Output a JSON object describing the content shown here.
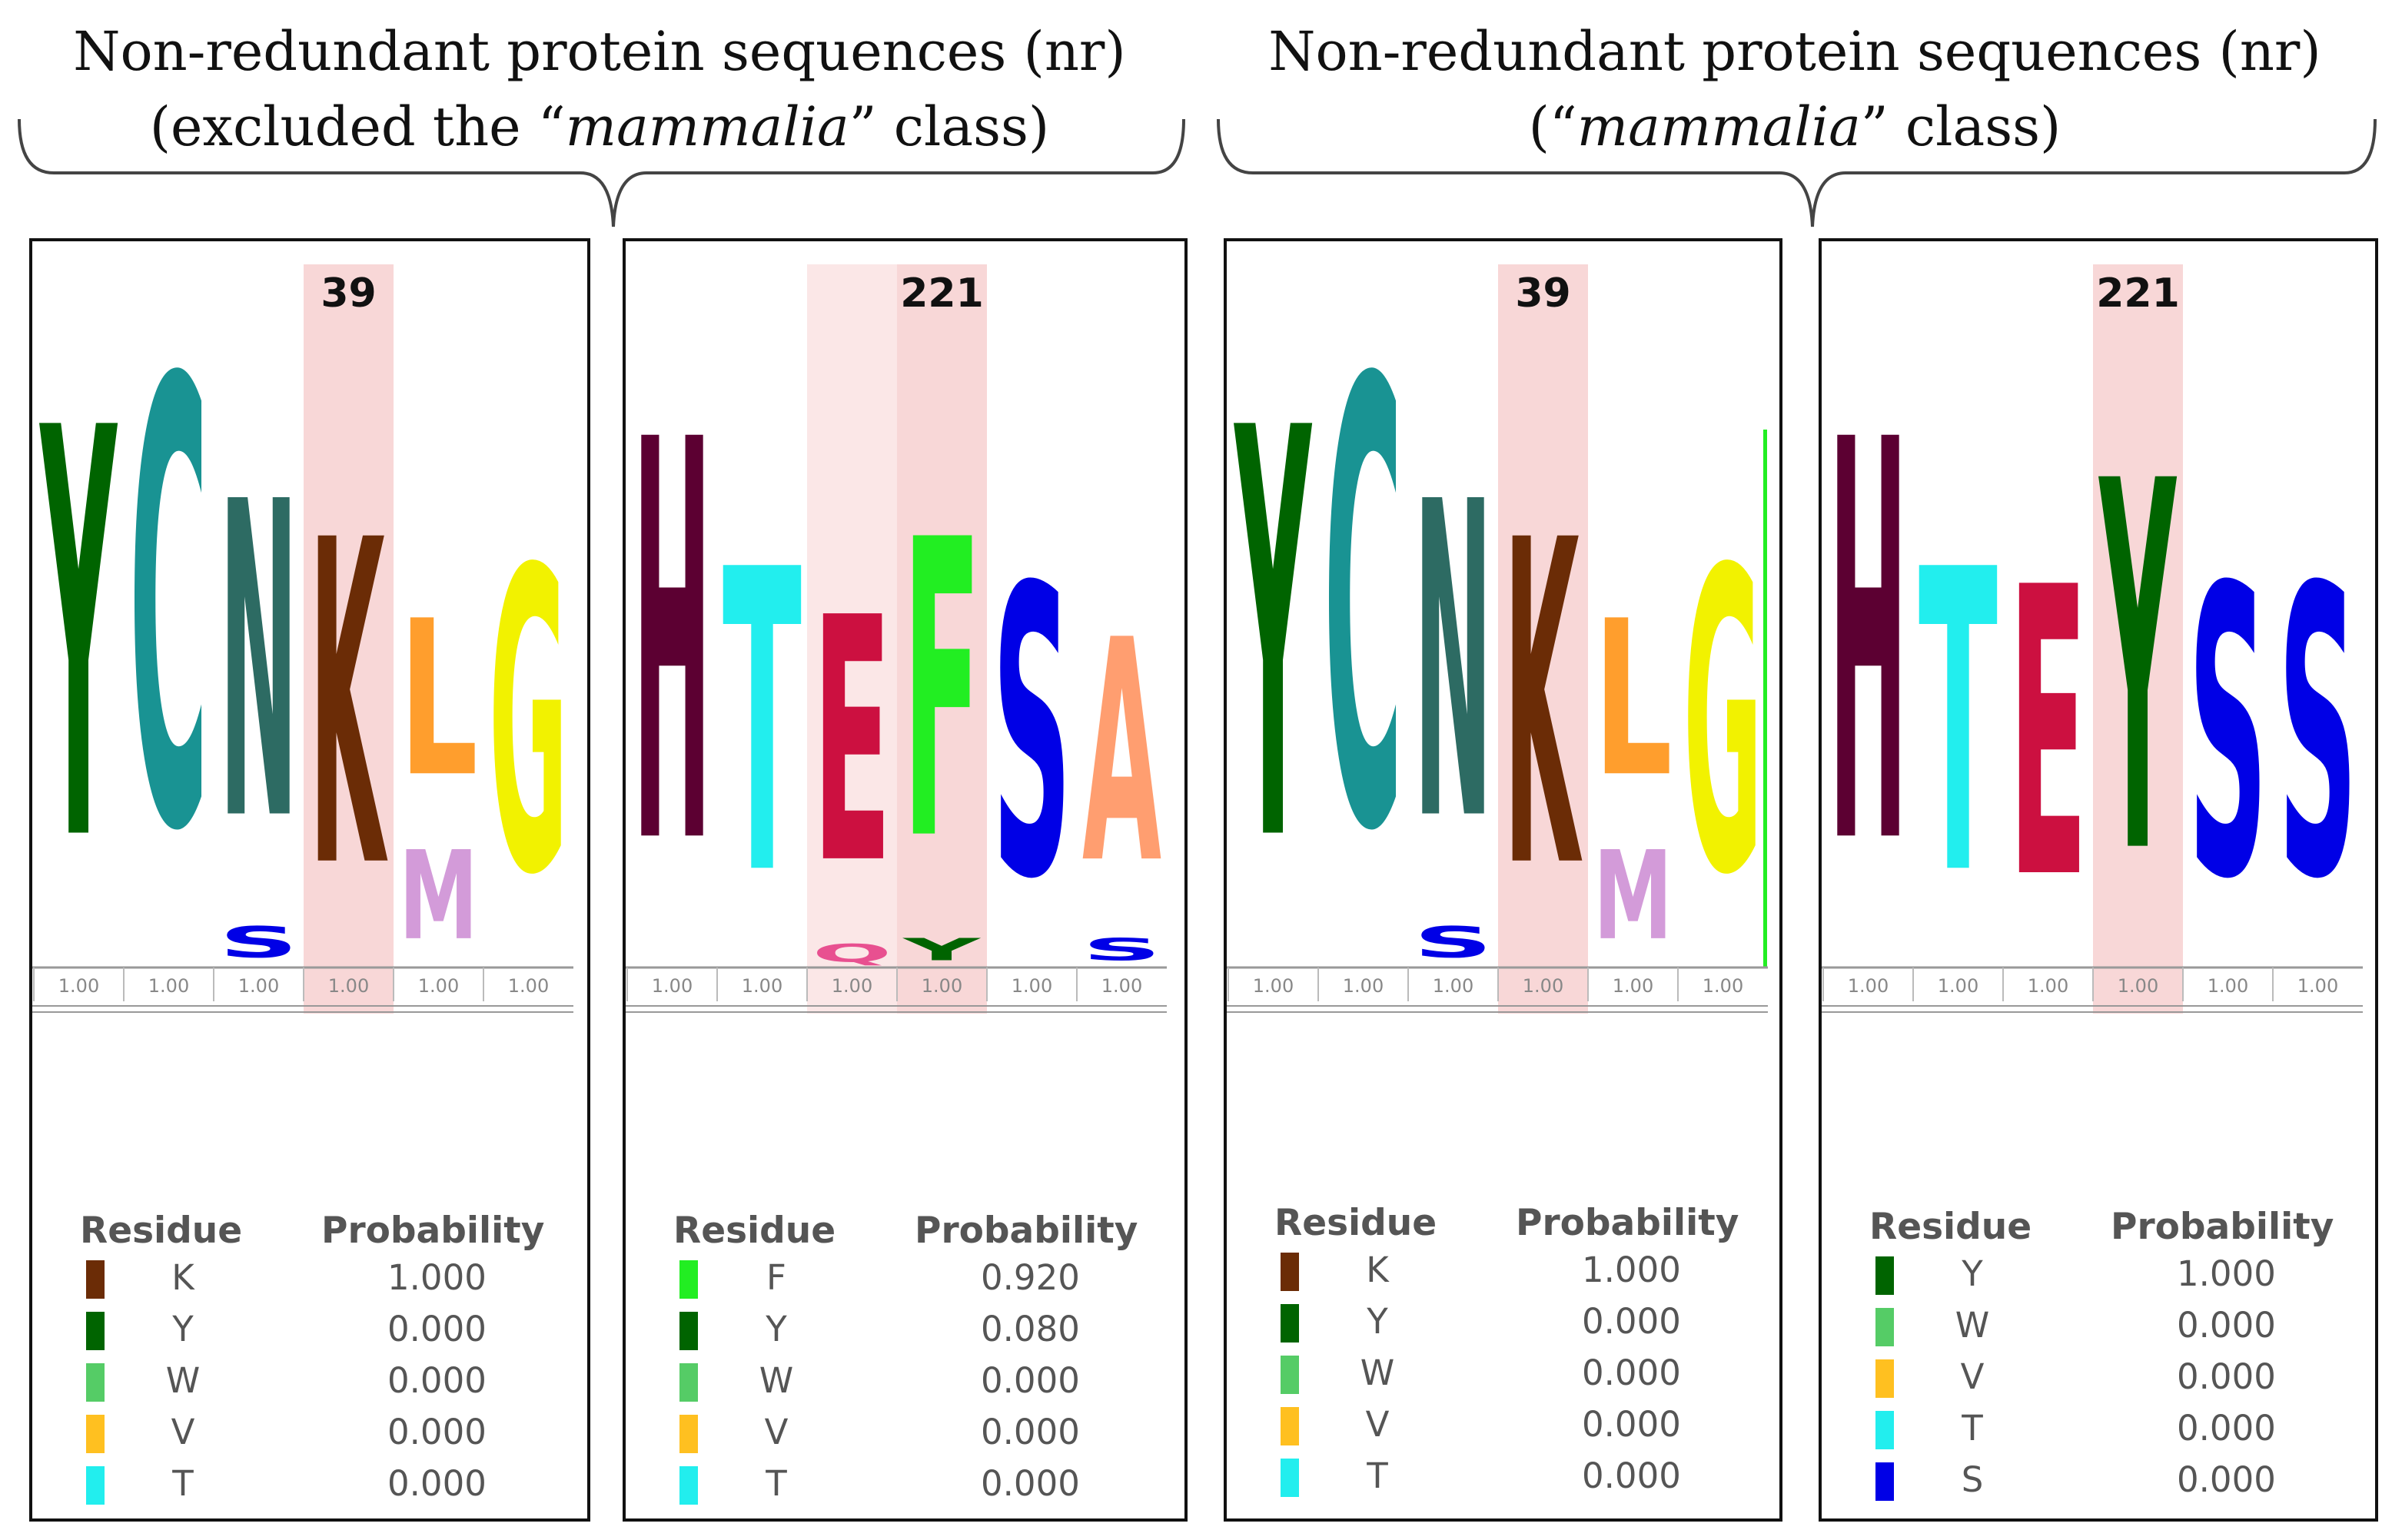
{
  "headers": {
    "left": {
      "line1": "Non-redundant protein sequences (nr)",
      "line2_pre": "(excluded the “",
      "line2_em": "mammalia",
      "line2_post": "” class)"
    },
    "right": {
      "line1": "Non-redundant protein sequences (nr)",
      "line2_pre": "(“",
      "line2_em": "mammalia",
      "line2_post": "” class)"
    }
  },
  "colors": {
    "Y": "#006400",
    "C": "#199393",
    "N": "#2d6b63",
    "K": "#6b2c06",
    "L": "#ff9e2d",
    "M": "#d39bd9",
    "G": "#f2f200",
    "S": "#0000e6",
    "H": "#5c0032",
    "T": "#22eeee",
    "E": "#cc1040",
    "F": "#22ee22",
    "Q": "#e85090",
    "A": "#ff9e70",
    "W": "#55cc66",
    "V": "#ffc020",
    "axis": "#999999",
    "highlight": "#f8d7d7"
  },
  "panels": [
    {
      "id": "p1",
      "site_label": "39",
      "columns": [
        {
          "stack": [
            {
              "letter": "Y",
              "h": 0.92
            }
          ],
          "prob": "1.00"
        },
        {
          "stack": [
            {
              "letter": "C",
              "h": 1.0
            }
          ],
          "prob": "1.00"
        },
        {
          "stack": [
            {
              "letter": "S",
              "h": 0.07
            },
            {
              "letter": "N",
              "h": 0.71
            }
          ],
          "prob": "1.00"
        },
        {
          "stack": [
            {
              "letter": "K",
              "h": 0.73
            }
          ],
          "prob": "1.00",
          "highlight": true
        },
        {
          "stack": [
            {
              "letter": "M",
              "h": 0.2
            },
            {
              "letter": "L",
              "h": 0.35
            }
          ],
          "prob": "1.00"
        },
        {
          "stack": [
            {
              "letter": "G",
              "h": 0.68
            }
          ],
          "prob": "1.00"
        }
      ],
      "legend": {
        "residue_header": "Residue",
        "prob_header": "Probability",
        "rows": [
          {
            "residue": "K",
            "probability": "1.000",
            "color": "#6b2c06"
          },
          {
            "residue": "Y",
            "probability": "0.000",
            "color": "#006400"
          },
          {
            "residue": "W",
            "probability": "0.000",
            "color": "#55cc66"
          },
          {
            "residue": "V",
            "probability": "0.000",
            "color": "#ffc020"
          },
          {
            "residue": "T",
            "probability": "0.000",
            "color": "#22eeee"
          }
        ]
      }
    },
    {
      "id": "p2",
      "site_label": "221",
      "columns": [
        {
          "stack": [
            {
              "letter": "H",
              "h": 0.9
            }
          ],
          "prob": "1.00"
        },
        {
          "stack": [
            {
              "letter": "T",
              "h": 0.68
            }
          ],
          "prob": "1.00"
        },
        {
          "stack": [
            {
              "letter": "Q",
              "h": 0.04
            },
            {
              "letter": "E",
              "h": 0.55
            }
          ],
          "prob": "1.00",
          "highlight_light": true
        },
        {
          "stack": [
            {
              "letter": "Y",
              "h": 0.05
            },
            {
              "letter": "F",
              "h": 0.67
            }
          ],
          "prob": "1.00",
          "highlight": true
        },
        {
          "stack": [
            {
              "letter": "S",
              "h": 0.65
            }
          ],
          "prob": "1.00"
        },
        {
          "stack": [
            {
              "letter": "S",
              "h": 0.05
            },
            {
              "letter": "A",
              "h": 0.5
            }
          ],
          "prob": "1.00"
        }
      ],
      "legend": {
        "residue_header": "Residue",
        "prob_header": "Probability",
        "rows": [
          {
            "residue": "F",
            "probability": "0.920",
            "color": "#22ee22"
          },
          {
            "residue": "Y",
            "probability": "0.080",
            "color": "#006400"
          },
          {
            "residue": "W",
            "probability": "0.000",
            "color": "#55cc66"
          },
          {
            "residue": "V",
            "probability": "0.000",
            "color": "#ffc020"
          },
          {
            "residue": "T",
            "probability": "0.000",
            "color": "#22eeee"
          }
        ]
      }
    },
    {
      "id": "p3",
      "site_label": "39",
      "columns": [
        {
          "stack": [
            {
              "letter": "Y",
              "h": 0.92
            }
          ],
          "prob": "1.00"
        },
        {
          "stack": [
            {
              "letter": "C",
              "h": 1.0
            }
          ],
          "prob": "1.00"
        },
        {
          "stack": [
            {
              "letter": "S",
              "h": 0.07
            },
            {
              "letter": "N",
              "h": 0.71
            }
          ],
          "prob": "1.00"
        },
        {
          "stack": [
            {
              "letter": "K",
              "h": 0.73
            }
          ],
          "prob": "1.00",
          "highlight": true
        },
        {
          "stack": [
            {
              "letter": "M",
              "h": 0.2
            },
            {
              "letter": "L",
              "h": 0.35
            }
          ],
          "prob": "1.00"
        },
        {
          "stack": [
            {
              "letter": "G",
              "h": 0.68
            }
          ],
          "prob": "1.00",
          "side_bar": true
        }
      ],
      "legend": {
        "residue_header": "Residue",
        "prob_header": "Probability",
        "rows": [
          {
            "residue": "K",
            "probability": "1.000",
            "color": "#6b2c06"
          },
          {
            "residue": "Y",
            "probability": "0.000",
            "color": "#006400"
          },
          {
            "residue": "W",
            "probability": "0.000",
            "color": "#55cc66"
          },
          {
            "residue": "V",
            "probability": "0.000",
            "color": "#ffc020"
          },
          {
            "residue": "T",
            "probability": "0.000",
            "color": "#22eeee"
          }
        ]
      }
    },
    {
      "id": "p4",
      "site_label": "221",
      "columns": [
        {
          "stack": [
            {
              "letter": "H",
              "h": 0.9
            }
          ],
          "prob": "1.00"
        },
        {
          "stack": [
            {
              "letter": "T",
              "h": 0.68
            }
          ],
          "prob": "1.00"
        },
        {
          "stack": [
            {
              "letter": "E",
              "h": 0.65
            }
          ],
          "prob": "1.00"
        },
        {
          "stack": [
            {
              "letter": "Y",
              "h": 0.83
            }
          ],
          "prob": "1.00",
          "highlight": true
        },
        {
          "stack": [
            {
              "letter": "S",
              "h": 0.65
            }
          ],
          "prob": "1.00"
        },
        {
          "stack": [
            {
              "letter": "S",
              "h": 0.65
            }
          ],
          "prob": "1.00"
        }
      ],
      "legend": {
        "residue_header": "Residue",
        "prob_header": "Probability",
        "rows": [
          {
            "residue": "Y",
            "probability": "1.000",
            "color": "#006400"
          },
          {
            "residue": "W",
            "probability": "0.000",
            "color": "#55cc66"
          },
          {
            "residue": "V",
            "probability": "0.000",
            "color": "#ffc020"
          },
          {
            "residue": "T",
            "probability": "0.000",
            "color": "#22eeee"
          },
          {
            "residue": "S",
            "probability": "0.000",
            "color": "#0000e6"
          }
        ]
      }
    }
  ]
}
